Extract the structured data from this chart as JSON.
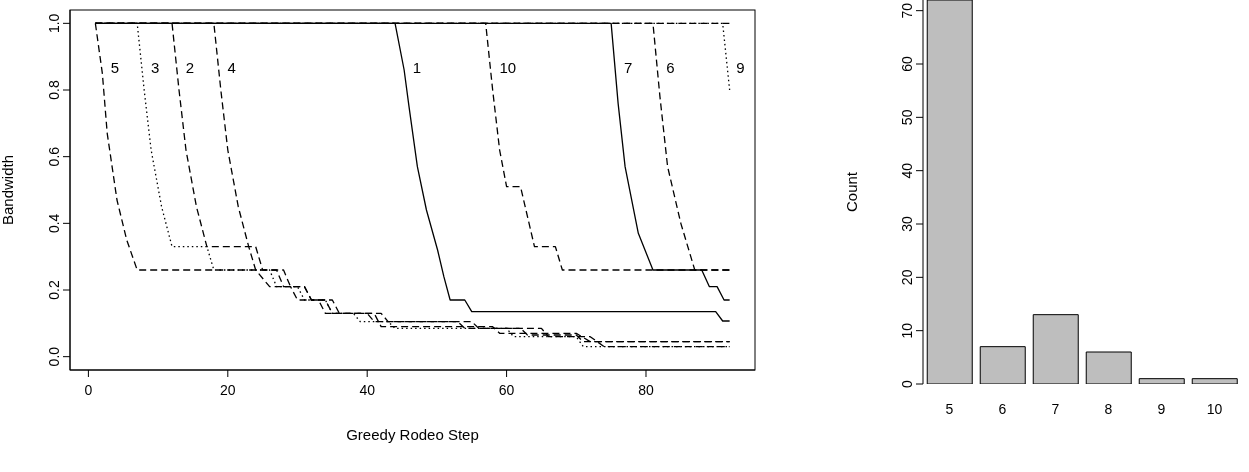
{
  "chart_data": [
    {
      "type": "line",
      "xlabel": "Greedy Rodeo Step",
      "ylabel": "Bandwidth",
      "xlim": [
        -2.64,
        95.64
      ],
      "ylim": [
        -0.04,
        1.04
      ],
      "xticks": [
        0,
        20,
        40,
        60,
        80
      ],
      "yticks": [
        {
          "value": 0,
          "label": "0.0"
        },
        0.2,
        0.4,
        0.6,
        0.8,
        {
          "value": 1,
          "label": "1.0"
        }
      ],
      "marker": "none",
      "series": [
        {
          "name": "1",
          "color": "#000000",
          "line_style": "solid",
          "x": [
            1,
            44,
            45.3,
            46,
            47.2,
            48.5,
            50.1,
            51,
            51.9,
            54,
            55,
            90,
            91,
            92
          ],
          "values": [
            1,
            1,
            0.86,
            0.75,
            0.57,
            0.44,
            0.32,
            0.24,
            0.17,
            0.17,
            0.135,
            0.135,
            0.107,
            0.107
          ]
        },
        {
          "name": "2",
          "color": "#000000",
          "line_style": "dashed",
          "x": [
            1,
            12,
            13,
            14,
            15.5,
            17,
            23,
            24,
            26,
            29,
            30,
            33,
            34,
            40,
            41,
            55,
            56,
            65,
            66,
            72,
            74,
            92
          ],
          "values": [
            1,
            1,
            0.8,
            0.62,
            0.45,
            0.33,
            0.33,
            0.26,
            0.21,
            0.21,
            0.17,
            0.17,
            0.13,
            0.13,
            0.105,
            0.105,
            0.085,
            0.085,
            0.06,
            0.06,
            0.03,
            0.03
          ]
        },
        {
          "name": "3",
          "color": "#000000",
          "line_style": "dotted",
          "x": [
            1,
            7,
            8,
            9,
            10.5,
            12,
            17,
            18,
            26,
            27,
            30,
            31,
            34,
            35,
            38,
            39,
            43,
            44,
            60,
            61,
            70,
            71,
            92
          ],
          "values": [
            1,
            1,
            0.8,
            0.62,
            0.45,
            0.33,
            0.33,
            0.26,
            0.26,
            0.21,
            0.21,
            0.17,
            0.17,
            0.13,
            0.13,
            0.105,
            0.105,
            0.085,
            0.085,
            0.06,
            0.06,
            0.03,
            0.03
          ]
        },
        {
          "name": "4",
          "color": "#000000",
          "line_style": "dashed",
          "x": [
            1,
            18,
            19,
            20,
            21.5,
            23,
            24,
            25,
            27,
            28,
            31,
            32,
            34,
            35,
            41,
            42,
            58,
            59,
            70,
            72,
            92
          ],
          "values": [
            1,
            1,
            0.8,
            0.62,
            0.45,
            0.33,
            0.33,
            0.26,
            0.26,
            0.21,
            0.21,
            0.17,
            0.17,
            0.13,
            0.13,
            0.09,
            0.09,
            0.07,
            0.07,
            0.045,
            0.045
          ]
        },
        {
          "name": "5",
          "color": "#000000",
          "line_style": "dashed",
          "x": [
            1,
            2,
            2.7,
            4.1,
            5.5,
            7,
            28,
            29,
            31,
            32,
            35,
            36,
            42,
            43,
            53,
            54,
            62,
            63,
            70,
            71,
            92
          ],
          "values": [
            1,
            0.85,
            0.67,
            0.47,
            0.35,
            0.26,
            0.26,
            0.21,
            0.21,
            0.17,
            0.17,
            0.13,
            0.13,
            0.105,
            0.105,
            0.085,
            0.085,
            0.065,
            0.065,
            0.045,
            0.045
          ]
        },
        {
          "name": "6",
          "color": "#000000",
          "line_style": "dashed",
          "x": [
            1,
            81,
            82,
            83.1,
            85,
            87,
            92
          ],
          "values": [
            1,
            1,
            0.78,
            0.57,
            0.4,
            0.26,
            0.26
          ]
        },
        {
          "name": "7",
          "color": "#000000",
          "line_style": "solid",
          "x": [
            1,
            75,
            76,
            77,
            78.9,
            81,
            88,
            89.1,
            90.2,
            91.2,
            92
          ],
          "values": [
            1,
            1,
            0.76,
            0.57,
            0.37,
            0.26,
            0.26,
            0.21,
            0.21,
            0.17,
            0.17
          ]
        },
        {
          "color": "#000000",
          "line_style": "dashed",
          "x": [
            1,
            92
          ],
          "values": [
            1,
            1
          ]
        },
        {
          "name": "9",
          "color": "#000000",
          "line_style": "dotted",
          "x": [
            1,
            91,
            92
          ],
          "values": [
            1,
            1,
            0.8
          ]
        },
        {
          "name": "10",
          "color": "#000000",
          "line_style": "dashed",
          "x": [
            1,
            57,
            58,
            59,
            60,
            62,
            64,
            67,
            68,
            92
          ],
          "values": [
            1,
            1,
            0.8,
            0.62,
            0.51,
            0.51,
            0.33,
            0.33,
            0.26,
            0.26
          ]
        }
      ]
    },
    {
      "type": "bar",
      "ylabel": "Count",
      "categories": [
        "5",
        "6",
        "7",
        "8",
        "9",
        "10"
      ],
      "values": [
        72,
        7,
        13,
        6,
        1,
        1
      ],
      "color": "#bebebe",
      "ylim": [
        0,
        72
      ],
      "yticks": [
        0,
        10,
        20,
        30,
        40,
        50,
        60,
        70
      ]
    }
  ]
}
